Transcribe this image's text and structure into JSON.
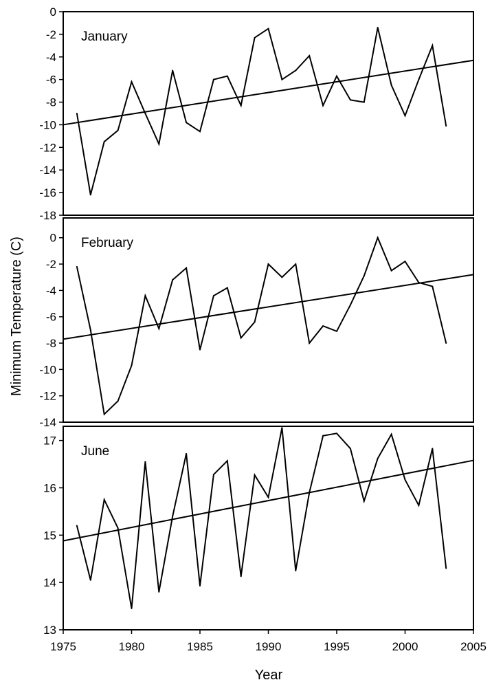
{
  "chart_data": {
    "type": "line",
    "xlabel": "Year",
    "ylabel": "Minimum Temperature (C)",
    "xlim": [
      1975,
      2005
    ],
    "x_ticks": [
      1975,
      1980,
      1985,
      1990,
      1995,
      2000,
      2005
    ],
    "x": [
      1976,
      1977,
      1978,
      1979,
      1980,
      1981,
      1982,
      1983,
      1984,
      1985,
      1986,
      1987,
      1988,
      1989,
      1990,
      1991,
      1992,
      1993,
      1994,
      1995,
      1996,
      1997,
      1998,
      1999,
      2000,
      2001,
      2002,
      2003
    ],
    "panels": [
      {
        "label": "January",
        "ylim": [
          -18,
          0
        ],
        "y_ticks": [
          0,
          -2,
          -4,
          -6,
          -8,
          -10,
          -12,
          -14,
          -16,
          -18
        ],
        "values": [
          -9.0,
          -16.2,
          -11.5,
          -10.5,
          -6.2,
          -9.0,
          -11.7,
          -5.2,
          -9.8,
          -10.6,
          -6.0,
          -5.7,
          -8.3,
          -2.3,
          -1.5,
          -6.0,
          -5.2,
          -3.9,
          -8.3,
          -5.7,
          -7.8,
          -8.0,
          -1.4,
          -6.5,
          -9.2,
          -6.0,
          -3.0,
          -10.1
        ],
        "trend": {
          "x": [
            1975,
            2005
          ],
          "y": [
            -10.0,
            -4.3
          ]
        }
      },
      {
        "label": "February",
        "ylim": [
          -14,
          1.5
        ],
        "y_ticks": [
          0,
          -2,
          -4,
          -6,
          -8,
          -10,
          -12,
          -14
        ],
        "values": [
          -2.2,
          -7.0,
          -13.4,
          -12.4,
          -9.7,
          -4.4,
          -6.9,
          -3.2,
          -2.3,
          -8.5,
          -4.4,
          -3.8,
          -7.6,
          -6.4,
          -2.0,
          -3.0,
          -2.0,
          -8.0,
          -6.7,
          -7.1,
          -5.1,
          -2.9,
          0.0,
          -2.5,
          -1.8,
          -3.4,
          -3.7,
          -8.0
        ],
        "trend": {
          "x": [
            1975,
            2005
          ],
          "y": [
            -7.7,
            -2.8
          ]
        }
      },
      {
        "label": "June",
        "ylim": [
          13,
          17.3
        ],
        "y_ticks": [
          13,
          14,
          15,
          16,
          17
        ],
        "values": [
          15.2,
          14.05,
          15.75,
          15.15,
          13.45,
          16.55,
          13.8,
          15.4,
          16.72,
          13.93,
          16.28,
          16.57,
          14.13,
          16.27,
          15.8,
          17.27,
          14.25,
          15.9,
          17.1,
          17.15,
          16.83,
          15.72,
          16.62,
          17.13,
          16.17,
          15.63,
          16.83,
          14.3
        ],
        "trend": {
          "x": [
            1975,
            2005
          ],
          "y": [
            14.88,
            16.58
          ]
        }
      }
    ]
  }
}
